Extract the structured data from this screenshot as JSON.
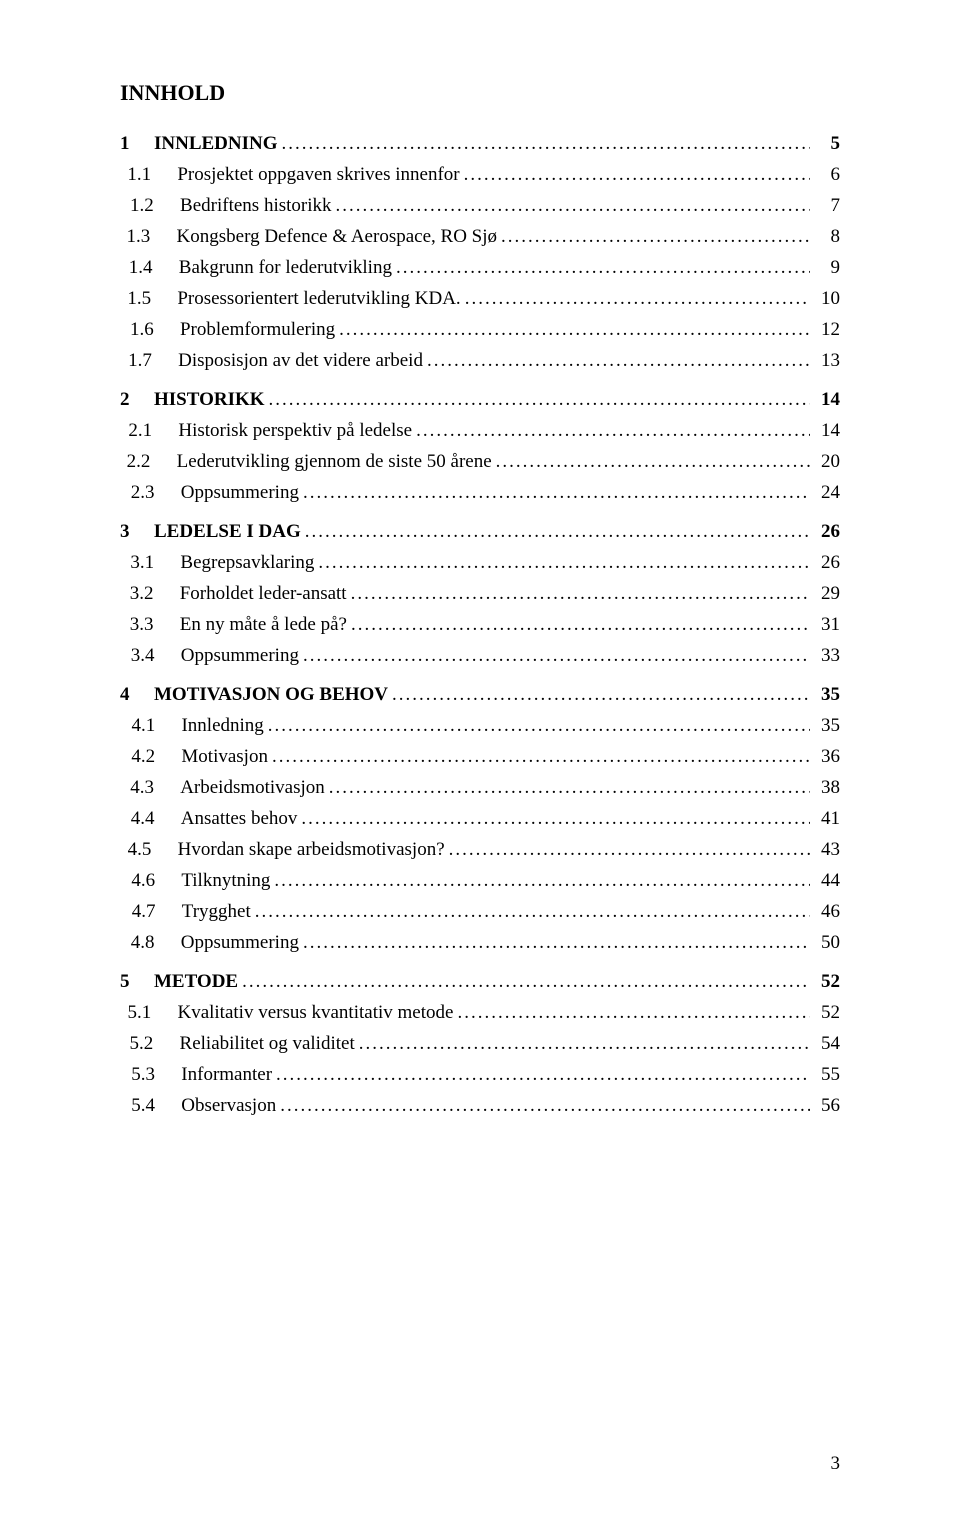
{
  "heading": "INNHOLD",
  "page_number": "3",
  "toc": [
    {
      "level": "chapter",
      "num": "1",
      "title": "INNLEDNING",
      "page": "5"
    },
    {
      "level": "sub",
      "num": "1.1",
      "title": "Prosjektet oppgaven skrives innenfor",
      "page": "6"
    },
    {
      "level": "sub",
      "num": "1.2",
      "title": "Bedriftens historikk",
      "page": "7"
    },
    {
      "level": "sub",
      "num": "1.3",
      "title": "Kongsberg Defence & Aerospace, RO Sjø",
      "page": "8"
    },
    {
      "level": "sub",
      "num": "1.4",
      "title": "Bakgrunn for lederutvikling",
      "page": "9"
    },
    {
      "level": "sub",
      "num": "1.5",
      "title": "Prosessorientert lederutvikling KDA.",
      "page": "10"
    },
    {
      "level": "sub",
      "num": "1.6",
      "title": "Problemformulering",
      "page": "12"
    },
    {
      "level": "sub",
      "num": "1.7",
      "title": "Disposisjon av det videre arbeid",
      "page": "13"
    },
    {
      "level": "chapter",
      "num": "2",
      "title": "HISTORIKK",
      "page": "14"
    },
    {
      "level": "sub",
      "num": "2.1",
      "title": "Historisk perspektiv på ledelse",
      "page": "14"
    },
    {
      "level": "sub",
      "num": "2.2",
      "title": "Lederutvikling gjennom de siste 50 årene",
      "page": "20"
    },
    {
      "level": "sub",
      "num": "2.3",
      "title": "Oppsummering",
      "page": "24"
    },
    {
      "level": "chapter",
      "num": "3",
      "title": "LEDELSE I DAG",
      "page": "26"
    },
    {
      "level": "sub",
      "num": "3.1",
      "title": "Begrepsavklaring",
      "page": "26"
    },
    {
      "level": "sub",
      "num": "3.2",
      "title": "Forholdet leder-ansatt",
      "page": "29"
    },
    {
      "level": "sub",
      "num": "3.3",
      "title": "En ny måte å lede på?",
      "page": "31"
    },
    {
      "level": "sub",
      "num": "3.4",
      "title": "Oppsummering",
      "page": "33"
    },
    {
      "level": "chapter",
      "num": "4",
      "title": "MOTIVASJON OG BEHOV",
      "page": "35"
    },
    {
      "level": "sub",
      "num": "4.1",
      "title": "Innledning",
      "page": "35"
    },
    {
      "level": "sub",
      "num": "4.2",
      "title": "Motivasjon",
      "page": "36"
    },
    {
      "level": "sub",
      "num": "4.3",
      "title": "Arbeidsmotivasjon",
      "page": "38"
    },
    {
      "level": "sub",
      "num": "4.4",
      "title": "Ansattes behov",
      "page": "41"
    },
    {
      "level": "sub",
      "num": "4.5",
      "title": "Hvordan skape arbeidsmotivasjon?",
      "page": "43"
    },
    {
      "level": "sub",
      "num": "4.6",
      "title": "Tilknytning",
      "page": "44"
    },
    {
      "level": "sub",
      "num": "4.7",
      "title": "Trygghet",
      "page": "46"
    },
    {
      "level": "sub",
      "num": "4.8",
      "title": "Oppsummering",
      "page": "50"
    },
    {
      "level": "chapter",
      "num": "5",
      "title": "METODE",
      "page": "52"
    },
    {
      "level": "sub",
      "num": "5.1",
      "title": "Kvalitativ versus kvantitativ metode",
      "page": "52"
    },
    {
      "level": "sub",
      "num": "5.2",
      "title": "Reliabilitet og validitet",
      "page": "54"
    },
    {
      "level": "sub",
      "num": "5.3",
      "title": "Informanter",
      "page": "55"
    },
    {
      "level": "sub",
      "num": "5.4",
      "title": "Observasjon",
      "page": "56"
    }
  ]
}
